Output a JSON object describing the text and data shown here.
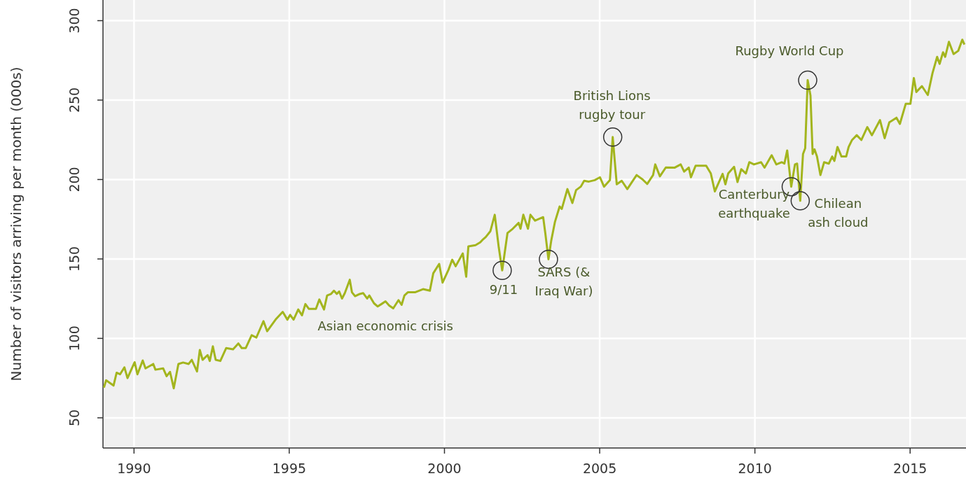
{
  "chart_data": {
    "type": "line",
    "ylabel": "Number of visitors arriving per month (000s)",
    "xlim": [
      1989,
      2016.8
    ],
    "ylim": [
      31,
      313
    ],
    "xticks": [
      1990,
      1995,
      2000,
      2005,
      2010,
      2015
    ],
    "yticks": [
      50,
      100,
      150,
      200,
      250,
      300
    ],
    "grid": true,
    "marker": "none",
    "line_style": "solid",
    "annotations": [
      {
        "text": "Asian economic crisis",
        "x": 1998.1,
        "y": 123.3
      },
      {
        "text": "9/11",
        "x": 2001.86,
        "y": 142.8
      },
      {
        "text": "SARS (& Iraq War)",
        "x": 2003.35,
        "y": 149.8
      },
      {
        "text": "British Lions rugby tour",
        "x": 2005.42,
        "y": 226.7
      },
      {
        "text": "Canterbury earthquake",
        "x": 2011.17,
        "y": 195.5
      },
      {
        "text": "Chilean ash cloud",
        "x": 2011.46,
        "y": 186.6
      },
      {
        "text": "Rugby World Cup",
        "x": 2011.7,
        "y": 262.5
      }
    ],
    "series": [
      {
        "color": "#a3b51e",
        "x": [
          1989.03,
          1989.1,
          1989.34,
          1989.44,
          1989.55,
          1989.69,
          1989.79,
          1990.02,
          1990.11,
          1990.28,
          1990.37,
          1990.62,
          1990.69,
          1990.94,
          1991.05,
          1991.16,
          1991.28,
          1991.43,
          1991.58,
          1991.76,
          1991.86,
          1992.03,
          1992.12,
          1992.21,
          1992.37,
          1992.44,
          1992.54,
          1992.63,
          1992.78,
          1992.97,
          1993.19,
          1993.36,
          1993.47,
          1993.6,
          1993.79,
          1993.94,
          1994.17,
          1994.29,
          1994.58,
          1994.79,
          1994.94,
          1995.03,
          1995.14,
          1995.29,
          1995.41,
          1995.52,
          1995.63,
          1995.86,
          1995.97,
          1996.12,
          1996.22,
          1996.35,
          1996.44,
          1996.53,
          1996.61,
          1996.7,
          1996.79,
          1996.95,
          1997.02,
          1997.12,
          1997.25,
          1997.38,
          1997.51,
          1997.58,
          1997.73,
          1997.85,
          1997.97,
          1998.1,
          1998.22,
          1998.35,
          1998.52,
          1998.62,
          1998.71,
          1998.82,
          1999.05,
          1999.31,
          1999.53,
          1999.64,
          1999.83,
          1999.94,
          2000.13,
          2000.25,
          2000.36,
          2000.59,
          2000.7,
          2000.77,
          2001.0,
          2001.15,
          2001.22,
          2001.33,
          2001.48,
          2001.62,
          2001.75,
          2001.86,
          2002.03,
          2002.2,
          2002.39,
          2002.45,
          2002.54,
          2002.69,
          2002.77,
          2002.92,
          2003.18,
          2003.25,
          2003.35,
          2003.44,
          2003.56,
          2003.71,
          2003.78,
          2003.96,
          2004.12,
          2004.24,
          2004.39,
          2004.5,
          2004.65,
          2004.84,
          2005.01,
          2005.14,
          2005.33,
          2005.42,
          2005.55,
          2005.71,
          2005.89,
          2006.08,
          2006.19,
          2006.38,
          2006.53,
          2006.72,
          2006.79,
          2006.94,
          2007.13,
          2007.42,
          2007.61,
          2007.72,
          2007.87,
          2007.94,
          2008.09,
          2008.43,
          2008.58,
          2008.71,
          2008.96,
          2009.05,
          2009.14,
          2009.33,
          2009.44,
          2009.56,
          2009.71,
          2009.82,
          2009.97,
          2010.2,
          2010.31,
          2010.54,
          2010.69,
          2010.87,
          2010.95,
          2011.04,
          2011.17,
          2011.29,
          2011.36,
          2011.46,
          2011.55,
          2011.62,
          2011.7,
          2011.79,
          2011.86,
          2011.92,
          2012.0,
          2012.11,
          2012.23,
          2012.38,
          2012.49,
          2012.56,
          2012.66,
          2012.79,
          2012.94,
          2013.02,
          2013.13,
          2013.28,
          2013.43,
          2013.62,
          2013.77,
          2014.03,
          2014.18,
          2014.33,
          2014.56,
          2014.67,
          2014.86,
          2015.01,
          2015.12,
          2015.2,
          2015.38,
          2015.57,
          2015.72,
          2015.87,
          2015.95,
          2016.06,
          2016.13,
          2016.25,
          2016.4,
          2016.55,
          2016.68,
          2016.75
        ],
        "values": [
          69,
          73.6,
          70.3,
          78.4,
          77.4,
          81.8,
          75,
          85,
          77.4,
          86.1,
          81.1,
          83.9,
          80.3,
          81.1,
          76.2,
          78.9,
          68.6,
          83.9,
          84.8,
          83.9,
          86.5,
          79.2,
          92.7,
          86.5,
          89.5,
          85.8,
          95,
          86.5,
          85.8,
          93.9,
          93.1,
          96.8,
          93.9,
          93.9,
          102,
          100.5,
          110.8,
          104.5,
          112.3,
          116.7,
          111.8,
          114.8,
          111.8,
          118.2,
          114.5,
          121.6,
          118.6,
          118.6,
          124.5,
          118.2,
          127,
          128,
          130,
          128,
          129.5,
          125.1,
          128.5,
          136.9,
          129,
          126.6,
          127.8,
          128.5,
          125.1,
          127,
          122.1,
          120.1,
          121.6,
          123.3,
          120.7,
          118.9,
          124.1,
          121.1,
          127,
          129,
          129,
          131,
          130,
          141,
          146.9,
          135.1,
          143.2,
          149.5,
          145.4,
          153.5,
          138.8,
          157.9,
          158.7,
          160.4,
          161.9,
          163.8,
          167.5,
          177.8,
          157.2,
          142.8,
          166.3,
          169,
          172.7,
          169,
          177.8,
          169,
          177.8,
          174.1,
          176.3,
          166,
          149.8,
          161.6,
          173.4,
          183,
          181.5,
          194,
          185.2,
          193.3,
          195.5,
          199.2,
          198.7,
          199.6,
          201.4,
          195.5,
          199.6,
          226.7,
          197,
          199.2,
          194,
          199.6,
          202.8,
          200.1,
          197.2,
          202.8,
          209.5,
          202,
          207.6,
          207.5,
          209.5,
          205,
          207.5,
          201.4,
          208.7,
          208.7,
          203.8,
          192.5,
          203.6,
          197,
          203.8,
          208,
          198.4,
          206.5,
          203.8,
          210.9,
          209.5,
          210.9,
          207.5,
          215.3,
          209.5,
          210.9,
          210,
          218.3,
          195.5,
          209.5,
          210,
          186.6,
          216.1,
          219.7,
          262.5,
          252.9,
          216.1,
          219,
          214.5,
          202.8,
          210.9,
          210,
          214.5,
          211.7,
          220.5,
          214.5,
          214.5,
          220.5,
          224.9,
          227.9,
          224.9,
          233,
          227.9,
          237.4,
          226,
          236,
          238.9,
          235,
          247.7,
          247.7,
          263.9,
          255.1,
          258.8,
          253.2,
          266.9,
          277.2,
          272.8,
          280.1,
          277.2,
          286.7,
          279,
          281,
          288,
          285
        ]
      }
    ]
  }
}
